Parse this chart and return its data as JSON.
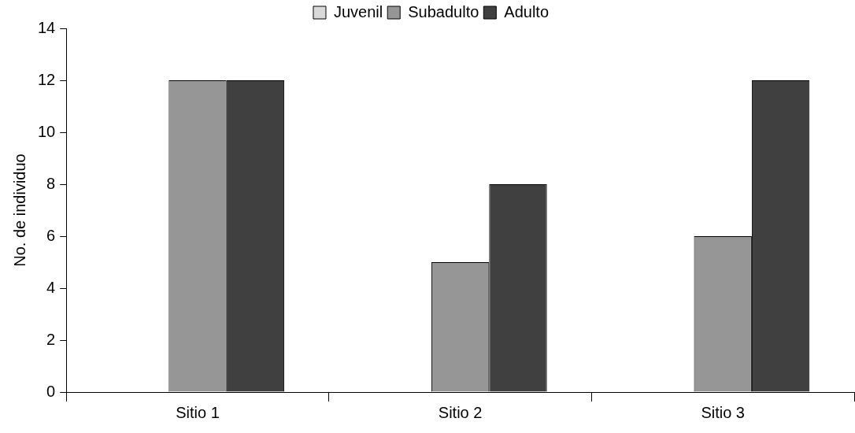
{
  "chart_data": {
    "type": "bar",
    "ylabel": "No. de individuo",
    "categories": [
      "Sitio 1",
      "Sitio 2",
      "Sitio 3"
    ],
    "series": [
      {
        "name": "Juvenil",
        "color": "#d9d9d9",
        "values": [
          0,
          0,
          0
        ]
      },
      {
        "name": "Subadulto",
        "color": "#969696",
        "values": [
          12,
          5,
          6
        ]
      },
      {
        "name": "Adulto",
        "color": "#404040",
        "values": [
          12,
          8,
          12
        ]
      }
    ],
    "ylim": [
      0,
      14
    ],
    "yticks": [
      0,
      2,
      4,
      6,
      8,
      10,
      12,
      14
    ],
    "grid": false,
    "legend": "top"
  }
}
